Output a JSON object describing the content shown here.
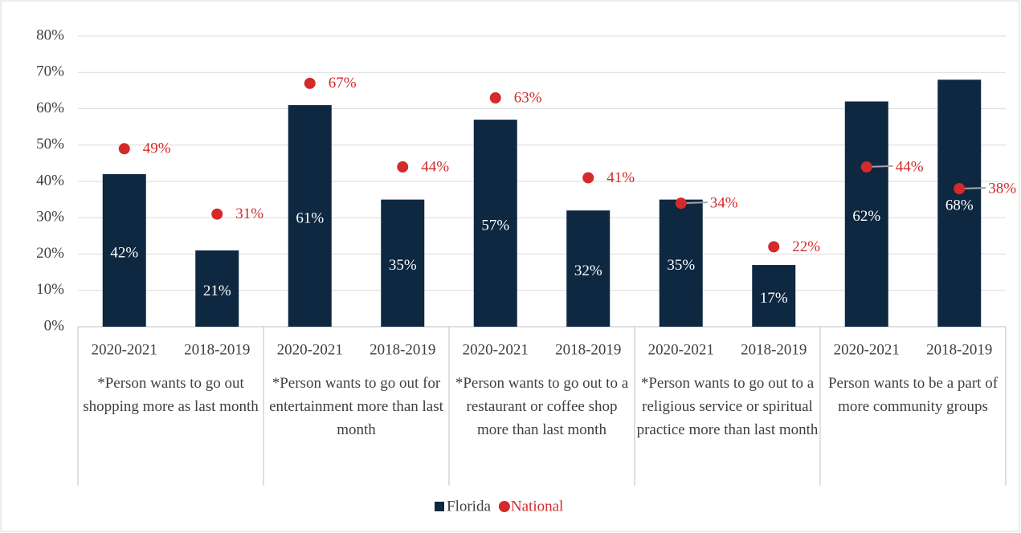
{
  "chart_data": {
    "type": "bar",
    "categories": [
      "2020-2021",
      "2018-2019",
      "2020-2021",
      "2018-2019",
      "2020-2021",
      "2018-2019",
      "2020-2021",
      "2018-2019",
      "2020-2021",
      "2018-2019"
    ],
    "groups": [
      "*Person wants to go out shopping more as last month",
      "*Person wants to go out for entertainment more than last month",
      "*Person wants to go out to a restaurant or coffee shop more than last month",
      "*Person wants to go out to a religious service or spiritual practice more than last month",
      "Person wants to be a part of more community groups"
    ],
    "series": [
      {
        "name": "Florida",
        "type": "bar",
        "color": "#0e2841",
        "values": [
          42,
          21,
          61,
          35,
          57,
          32,
          35,
          17,
          62,
          68
        ],
        "value_labels": [
          "42%",
          "21%",
          "61%",
          "35%",
          "57%",
          "32%",
          "35%",
          "17%",
          "62%",
          "68%"
        ]
      },
      {
        "name": "National",
        "type": "scatter",
        "color": "#d42a2a",
        "values": [
          49,
          31,
          67,
          44,
          63,
          41,
          34,
          22,
          44,
          38
        ],
        "value_labels": [
          "49%",
          "31%",
          "67%",
          "44%",
          "63%",
          "41%",
          "34%",
          "22%",
          "44%",
          "38%"
        ]
      }
    ],
    "ylim": [
      0,
      80
    ],
    "yticks": [
      {
        "value": 0,
        "label": "0%"
      },
      {
        "value": 10,
        "label": "10%"
      },
      {
        "value": 20,
        "label": "20%"
      },
      {
        "value": 30,
        "label": "30%"
      },
      {
        "value": 40,
        "label": "40%"
      },
      {
        "value": 50,
        "label": "50%"
      },
      {
        "value": 60,
        "label": "60%"
      },
      {
        "value": 70,
        "label": "70%"
      },
      {
        "value": 80,
        "label": "80%"
      }
    ],
    "grid": true,
    "legend": "bottom"
  }
}
